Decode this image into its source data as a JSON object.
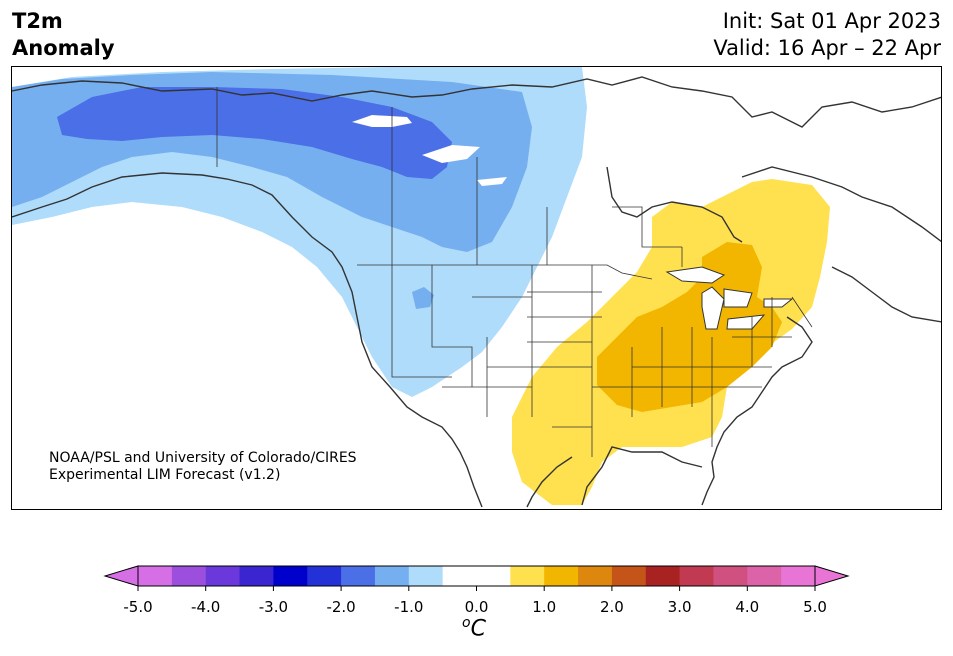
{
  "header": {
    "title_line1": "T2m",
    "title_line2": "Anomaly",
    "init": "Init: Sat 01 Apr 2023",
    "valid": "Valid: 16 Apr – 22 Apr"
  },
  "credit": {
    "line1": "NOAA/PSL and University of Colorado/CIRES",
    "line2": "Experimental LIM Forecast (v1.2)"
  },
  "colorbar": {
    "unit_base": "C",
    "unit_sup": "o",
    "ticks": [
      "-5.0",
      "-4.0",
      "-3.0",
      "-2.0",
      "-1.0",
      "0.0",
      "1.0",
      "2.0",
      "3.0",
      "4.0",
      "5.0"
    ],
    "colors": [
      "#d66fe6",
      "#9c4fdc",
      "#6b38dc",
      "#3a25d1",
      "#0000cc",
      "#2431d6",
      "#4a6fe6",
      "#76aff0",
      "#aedcfa",
      "#ffffff",
      "#ffffff",
      "#ffe04e",
      "#f2b600",
      "#de870f",
      "#c55418",
      "#a92222",
      "#c23a52",
      "#d05080",
      "#dc63a8",
      "#e874d6"
    ]
  },
  "map": {
    "colors": {
      "cold_strong": "#4a6fe6",
      "cold_mid": "#76aff0",
      "cold_light": "#aedcfa",
      "warm_light": "#ffe04e",
      "warm_mid": "#f2b600",
      "coast": "#333333"
    }
  }
}
